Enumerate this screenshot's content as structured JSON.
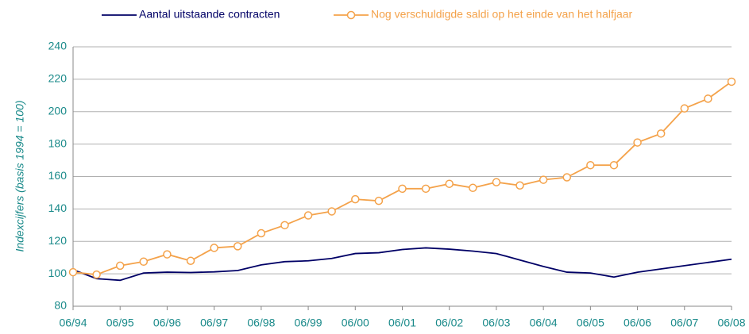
{
  "chart_data": {
    "type": "line",
    "y_label": "Indexcijfers (basis 1994 = 100)",
    "categories": [
      "06/94",
      null,
      "06/95",
      null,
      "06/96",
      null,
      "06/97",
      null,
      "06/98",
      null,
      "06/99",
      null,
      "06/00",
      null,
      "06/01",
      null,
      "06/02",
      null,
      "06/03",
      null,
      "06/04",
      null,
      "06/05",
      null,
      "06/06",
      null,
      "06/07",
      null,
      "06/08"
    ],
    "series": [
      {
        "name": "Aantal uitstaande contracten",
        "color": "#000066",
        "marker": false,
        "values": [
          102.5,
          97,
          96,
          100.5,
          101,
          100.8,
          101.2,
          102,
          105.5,
          107.5,
          108,
          109.5,
          112.5,
          113,
          115,
          116,
          115.2,
          114,
          112.5,
          108.5,
          104.5,
          101,
          100.5,
          98,
          101,
          103,
          105,
          107,
          109
        ]
      },
      {
        "name": "Nog verschuldigde saldi op het einde van het halfjaar",
        "color": "#f4a24a",
        "marker": true,
        "values": [
          101,
          99.5,
          105,
          107.5,
          112,
          108,
          116,
          117,
          125,
          130,
          136,
          138.5,
          146,
          145,
          152.5,
          152.5,
          155.5,
          153,
          156.5,
          154.5,
          158,
          159.5,
          167,
          167,
          181,
          186.5,
          202,
          208,
          218.5
        ]
      }
    ],
    "ylim": [
      80,
      240
    ],
    "yticks": [
      80,
      100,
      120,
      140,
      160,
      180,
      200,
      220,
      240
    ],
    "grid": true,
    "legend": "top"
  }
}
